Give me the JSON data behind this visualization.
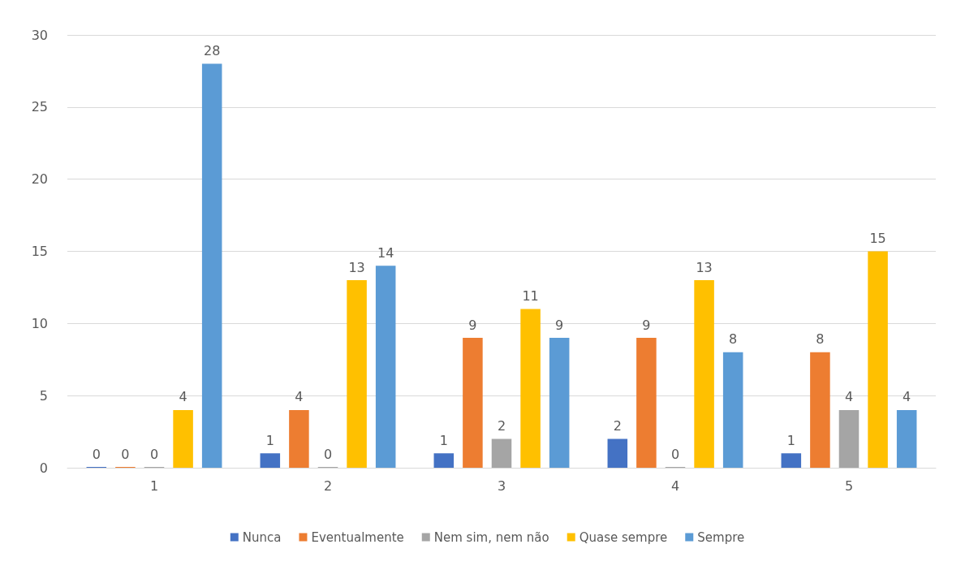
{
  "chart_data": {
    "type": "bar",
    "categories": [
      "1",
      "2",
      "3",
      "4",
      "5"
    ],
    "series": [
      {
        "name": "Nunca",
        "color": "#4472c4",
        "values": [
          0,
          1,
          1,
          2,
          1
        ]
      },
      {
        "name": "Eventualmente",
        "color": "#ed7d31",
        "values": [
          0,
          4,
          9,
          9,
          8
        ]
      },
      {
        "name": "Nem sim, nem não",
        "color": "#a5a5a5",
        "values": [
          0,
          0,
          2,
          0,
          4
        ]
      },
      {
        "name": "Quase sempre",
        "color": "#ffc000",
        "values": [
          4,
          13,
          11,
          13,
          15
        ]
      },
      {
        "name": "Sempre",
        "color": "#5b9bd5",
        "values": [
          28,
          14,
          9,
          8,
          4
        ]
      }
    ],
    "ylim": [
      0,
      30
    ],
    "yticks": [
      0,
      5,
      10,
      15,
      20,
      25,
      30
    ],
    "grid": "y",
    "legend": "bottom",
    "data_labels": true
  }
}
